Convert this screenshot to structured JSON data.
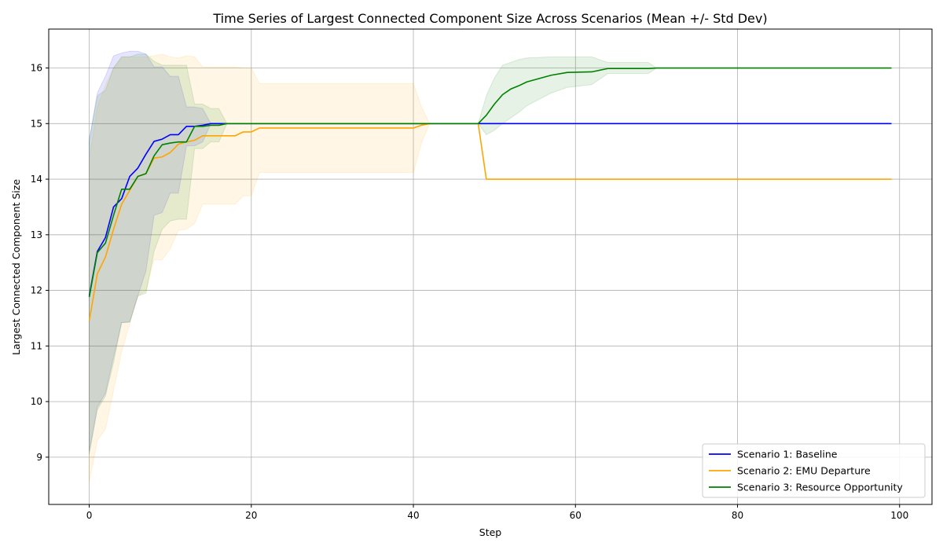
{
  "chart_data": {
    "type": "line",
    "title": "Time Series of Largest Connected Component Size Across Scenarios (Mean +/- Std Dev)",
    "xlabel": "Step",
    "ylabel": "Largest Connected Component Size",
    "xlim": [
      -5,
      104
    ],
    "ylim": [
      8.15,
      16.7
    ],
    "xticks": [
      0,
      20,
      40,
      60,
      80,
      100
    ],
    "yticks": [
      9,
      10,
      11,
      12,
      13,
      14,
      15,
      16
    ],
    "grid": true,
    "legend_position": "lower-right",
    "series": [
      {
        "name": "Scenario 1: Baseline",
        "color": "#0000ff",
        "band_color": "#0000ff",
        "points": [
          [
            0,
            11.9
          ],
          [
            1,
            12.7
          ],
          [
            2,
            12.95
          ],
          [
            3,
            13.5
          ],
          [
            4,
            13.65
          ],
          [
            5,
            14.05
          ],
          [
            6,
            14.2
          ],
          [
            7,
            14.45
          ],
          [
            8,
            14.68
          ],
          [
            9,
            14.72
          ],
          [
            10,
            14.8
          ],
          [
            11,
            14.8
          ],
          [
            12,
            14.95
          ],
          [
            13,
            14.95
          ],
          [
            14,
            14.97
          ],
          [
            15,
            15.0
          ],
          [
            99,
            15.0
          ]
        ],
        "band": [
          [
            0,
            9.1,
            14.7
          ],
          [
            1,
            9.9,
            15.55
          ],
          [
            2,
            10.15,
            15.85
          ],
          [
            3,
            10.8,
            16.22
          ],
          [
            4,
            11.42,
            16.27
          ],
          [
            5,
            11.43,
            16.3
          ],
          [
            6,
            11.9,
            16.3
          ],
          [
            7,
            12.35,
            16.25
          ],
          [
            8,
            13.35,
            16.02
          ],
          [
            9,
            13.4,
            16.02
          ],
          [
            10,
            13.75,
            15.85
          ],
          [
            11,
            13.75,
            15.85
          ],
          [
            12,
            14.6,
            15.3
          ],
          [
            13,
            14.6,
            15.3
          ],
          [
            14,
            14.67,
            15.27
          ],
          [
            15,
            15.0,
            15.0
          ],
          [
            99,
            15.0,
            15.0
          ]
        ]
      },
      {
        "name": "Scenario 2: EMU Departure",
        "color": "#ffa500",
        "band_color": "#ffa500",
        "points": [
          [
            0,
            11.45
          ],
          [
            1,
            12.3
          ],
          [
            2,
            12.6
          ],
          [
            3,
            13.1
          ],
          [
            4,
            13.55
          ],
          [
            5,
            13.8
          ],
          [
            6,
            14.05
          ],
          [
            7,
            14.1
          ],
          [
            8,
            14.38
          ],
          [
            9,
            14.4
          ],
          [
            10,
            14.48
          ],
          [
            11,
            14.63
          ],
          [
            12,
            14.67
          ],
          [
            13,
            14.7
          ],
          [
            14,
            14.78
          ],
          [
            15,
            14.78
          ],
          [
            18,
            14.78
          ],
          [
            19,
            14.85
          ],
          [
            20,
            14.85
          ],
          [
            21,
            14.92
          ],
          [
            40,
            14.92
          ],
          [
            41,
            14.97
          ],
          [
            42,
            15.0
          ],
          [
            48,
            15.0
          ],
          [
            49,
            14.0
          ],
          [
            99,
            14.0
          ]
        ],
        "band": [
          [
            0,
            8.55,
            14.35
          ],
          [
            1,
            9.3,
            15.3
          ],
          [
            2,
            9.5,
            15.7
          ],
          [
            3,
            10.2,
            16.0
          ],
          [
            4,
            10.9,
            16.2
          ],
          [
            5,
            11.4,
            16.2
          ],
          [
            6,
            11.9,
            16.2
          ],
          [
            7,
            12.0,
            16.2
          ],
          [
            8,
            12.55,
            16.22
          ],
          [
            9,
            12.55,
            16.25
          ],
          [
            10,
            12.75,
            16.2
          ],
          [
            11,
            13.08,
            16.18
          ],
          [
            12,
            13.1,
            16.22
          ],
          [
            13,
            13.2,
            16.2
          ],
          [
            14,
            13.55,
            16.02
          ],
          [
            18,
            13.55,
            16.02
          ],
          [
            19,
            13.7,
            16.0
          ],
          [
            20,
            13.7,
            16.0
          ],
          [
            21,
            14.12,
            15.72
          ],
          [
            40,
            14.12,
            15.72
          ],
          [
            41,
            14.65,
            15.3
          ],
          [
            42,
            15.0,
            15.0
          ],
          [
            48,
            15.0,
            15.0
          ],
          [
            49,
            14.0,
            14.0
          ],
          [
            99,
            14.0,
            14.0
          ]
        ]
      },
      {
        "name": "Scenario 3: Resource Opportunity",
        "color": "#008000",
        "band_color": "#008000",
        "points": [
          [
            0,
            11.88
          ],
          [
            1,
            12.68
          ],
          [
            2,
            12.85
          ],
          [
            3,
            13.35
          ],
          [
            4,
            13.82
          ],
          [
            5,
            13.82
          ],
          [
            6,
            14.05
          ],
          [
            7,
            14.1
          ],
          [
            8,
            14.42
          ],
          [
            9,
            14.62
          ],
          [
            10,
            14.65
          ],
          [
            11,
            14.67
          ],
          [
            12,
            14.67
          ],
          [
            13,
            14.95
          ],
          [
            14,
            14.95
          ],
          [
            15,
            14.97
          ],
          [
            16,
            14.97
          ],
          [
            17,
            15.0
          ],
          [
            48,
            15.0
          ],
          [
            49,
            15.15
          ],
          [
            50,
            15.35
          ],
          [
            51,
            15.52
          ],
          [
            52,
            15.62
          ],
          [
            53,
            15.68
          ],
          [
            54,
            15.75
          ],
          [
            57,
            15.87
          ],
          [
            59,
            15.92
          ],
          [
            62,
            15.93
          ],
          [
            64,
            15.99
          ],
          [
            69,
            15.99
          ],
          [
            70,
            16.0
          ],
          [
            99,
            16.0
          ]
        ],
        "band": [
          [
            0,
            9.05,
            14.7
          ],
          [
            1,
            9.85,
            15.5
          ],
          [
            2,
            10.1,
            15.6
          ],
          [
            3,
            10.7,
            16.0
          ],
          [
            4,
            11.42,
            16.2
          ],
          [
            5,
            11.43,
            16.2
          ],
          [
            6,
            11.9,
            16.25
          ],
          [
            7,
            11.95,
            16.25
          ],
          [
            8,
            12.7,
            16.12
          ],
          [
            9,
            13.1,
            16.05
          ],
          [
            10,
            13.25,
            16.05
          ],
          [
            11,
            13.28,
            16.05
          ],
          [
            12,
            13.28,
            16.05
          ],
          [
            13,
            14.55,
            15.35
          ],
          [
            14,
            14.55,
            15.35
          ],
          [
            15,
            14.67,
            15.27
          ],
          [
            16,
            14.67,
            15.27
          ],
          [
            17,
            15.0,
            15.0
          ],
          [
            48,
            15.0,
            15.0
          ],
          [
            49,
            14.8,
            15.5
          ],
          [
            50,
            14.88,
            15.82
          ],
          [
            51,
            15.0,
            16.05
          ],
          [
            52,
            15.1,
            16.1
          ],
          [
            53,
            15.2,
            16.15
          ],
          [
            54,
            15.32,
            16.18
          ],
          [
            57,
            15.55,
            16.2
          ],
          [
            59,
            15.65,
            16.2
          ],
          [
            62,
            15.7,
            16.2
          ],
          [
            64,
            15.9,
            16.1
          ],
          [
            69,
            15.9,
            16.1
          ],
          [
            70,
            16.0,
            16.0
          ],
          [
            99,
            16.0,
            16.0
          ]
        ]
      }
    ]
  }
}
